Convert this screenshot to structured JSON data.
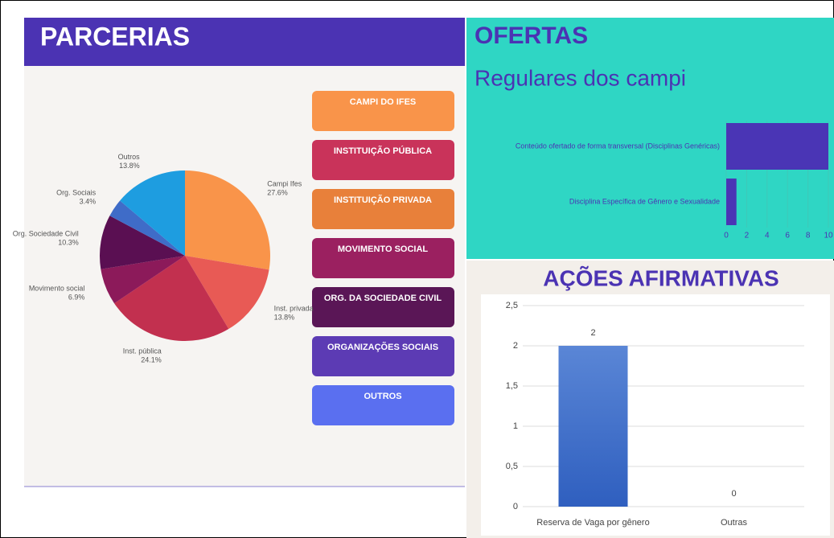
{
  "category_buttons": [
    {
      "label": "CAMPI DO IFES",
      "color": "#f9944a"
    },
    {
      "label": "INSTITUIÇÃO PÚBLICA",
      "color": "#c9335a"
    },
    {
      "label": "INSTITUIÇÃO PRIVADA",
      "color": "#e8803a"
    },
    {
      "label": "MOVIMENTO SOCIAL",
      "color": "#9b2060"
    },
    {
      "label": "ORG. DA SOCIEDADE CIVIL",
      "color": "#5a1656"
    },
    {
      "label": "ORGANIZAÇÕES SOCIAIS",
      "color": "#5c3bb4"
    },
    {
      "label": "OUTROS",
      "color": "#5a6ff0"
    }
  ],
  "chart_data": [
    {
      "type": "pie",
      "title": "PARCERIAS",
      "categories": [
        "Campi Ifes",
        "Inst. privada",
        "Inst. pública",
        "Movimento social",
        "Org. Sociedade Civil",
        "Org. Sociais",
        "Outros"
      ],
      "values": [
        27.6,
        13.8,
        24.1,
        6.9,
        10.3,
        3.4,
        13.8
      ],
      "value_labels": [
        "27.6%",
        "13.8%",
        "24.1%",
        "6.9%",
        "10.3%",
        "3.4%",
        "13.8%"
      ],
      "colors": [
        "#f9944a",
        "#e85a55",
        "#c2304f",
        "#8c1a5a",
        "#5a0f52",
        "#3f6cc8",
        "#1e9de0"
      ]
    },
    {
      "type": "bar",
      "horizontal": true,
      "title": "OFERTAS",
      "subtitle": "Regulares dos campi",
      "categories": [
        "Conteúdo ofertado de forma transversal (Disciplinas Genéricas)",
        "Disciplina Específica de Gênero e Sexualidade"
      ],
      "values": [
        10,
        1
      ],
      "color": "#4a35b5",
      "xlim": [
        0,
        10
      ],
      "xticks": [
        0,
        2,
        4,
        6,
        8,
        10
      ]
    },
    {
      "type": "bar",
      "horizontal": false,
      "title": "AÇÕES AFIRMATIVAS",
      "categories": [
        "Reserva de Vaga por gênero",
        "Outras"
      ],
      "values": [
        2,
        0
      ],
      "color": "#3f6cc4",
      "ylim": [
        0,
        2.5
      ],
      "yticks": [
        0,
        {
          "value": 0.5,
          "label": "0,5"
        },
        1,
        {
          "value": 1.5,
          "label": "1,5"
        },
        2,
        {
          "value": 2.5,
          "label": "2,5"
        }
      ],
      "grid": true
    }
  ]
}
